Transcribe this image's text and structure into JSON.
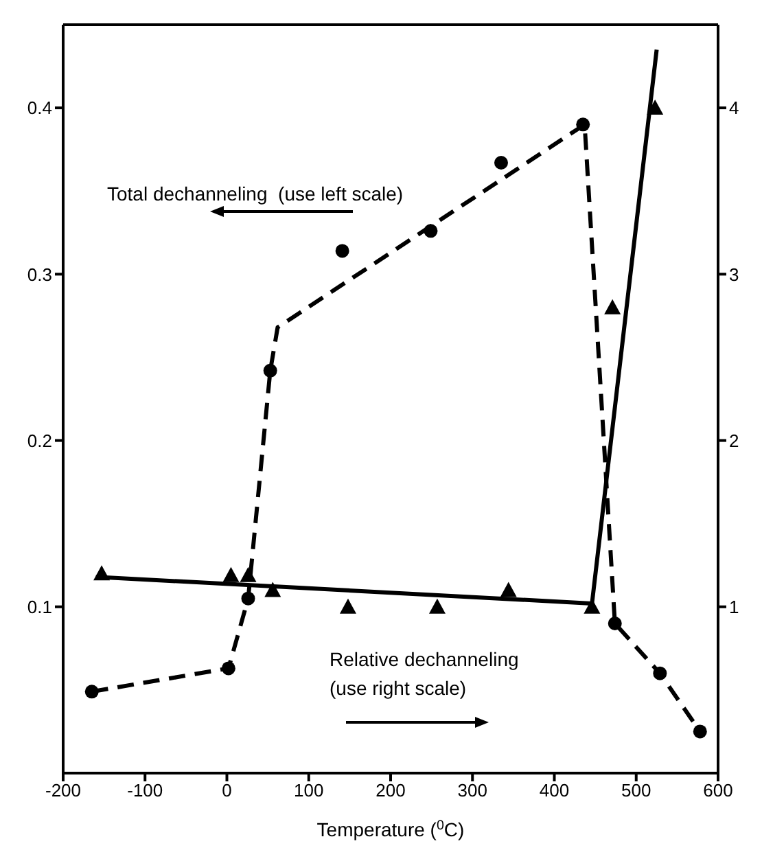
{
  "chart_data": {
    "type": "scatter",
    "xlabel": "Temperature ($^{0}$C)",
    "annotations": [
      "Total dechanneling  (use left scale)",
      "Relative dechanneling",
      "(use right scale)"
    ],
    "xlim": [
      -200,
      600
    ],
    "xticks": [
      -200,
      -100,
      0,
      100,
      200,
      300,
      400,
      500,
      600
    ],
    "ylim": [
      0,
      0.45
    ],
    "yticks": [
      0.1,
      0.2,
      0.3,
      0.4
    ],
    "y2lim": [
      0,
      4.5
    ],
    "y2ticks": [
      1,
      2,
      3,
      4
    ],
    "series": [
      {
        "marker": "circle",
        "color": "#000000",
        "x": [
          -165,
          2,
          26,
          53,
          141,
          249,
          335,
          435,
          474,
          529,
          578
        ],
        "values": [
          0.049,
          0.063,
          0.105,
          0.242,
          0.314,
          0.326,
          0.367,
          0.39,
          0.09,
          0.06,
          0.025
        ]
      },
      {
        "type": "line",
        "line_style": "dashed",
        "color": "#000000",
        "x": [
          -165,
          2,
          26,
          53,
          62,
          437,
          474,
          529,
          578
        ],
        "values": [
          0.049,
          0.063,
          0.105,
          0.242,
          0.268,
          0.39,
          0.09,
          0.06,
          0.025
        ]
      },
      {
        "axis": "y2",
        "marker": "triangle",
        "color": "#000000",
        "x": [
          -153,
          5,
          26,
          56,
          148,
          257,
          344,
          446,
          471,
          523
        ],
        "values": [
          1.2,
          1.19,
          1.19,
          1.1,
          1.0,
          1.0,
          1.1,
          1.0,
          2.8,
          4.0
        ]
      },
      {
        "type": "line",
        "axis": "y2",
        "line_style": "solid",
        "color": "#000000",
        "x": [
          -160,
          446,
          525
        ],
        "values": [
          1.18,
          1.02,
          4.35
        ]
      }
    ]
  }
}
